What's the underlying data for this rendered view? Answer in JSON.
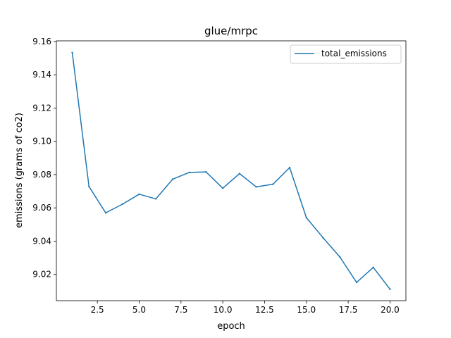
{
  "chart_data": {
    "type": "line",
    "title": "glue/mrpc",
    "xlabel": "epoch",
    "ylabel": "emissions (grams of co2)",
    "xlim": [
      0.05,
      20.95
    ],
    "ylim": [
      9.0042,
      9.1604
    ],
    "x_ticks": [
      2.5,
      5.0,
      7.5,
      10.0,
      12.5,
      15.0,
      17.5,
      20.0
    ],
    "x_tick_labels": [
      "2.5",
      "5.0",
      "7.5",
      "10.0",
      "12.5",
      "15.0",
      "17.5",
      "20.0"
    ],
    "y_ticks": [
      9.02,
      9.04,
      9.06,
      9.08,
      9.1,
      9.12,
      9.14,
      9.16
    ],
    "y_tick_labels": [
      "9.02",
      "9.04",
      "9.06",
      "9.08",
      "9.10",
      "9.12",
      "9.14",
      "9.16"
    ],
    "grid": false,
    "legend_position": "top-right",
    "series": [
      {
        "name": "total_emissions",
        "color": "#1f77b4",
        "x": [
          1,
          2,
          3,
          4,
          5,
          6,
          7,
          8,
          9,
          10,
          11,
          12,
          13,
          14,
          15,
          16,
          17,
          18,
          19,
          20
        ],
        "y": [
          9.1533,
          9.0728,
          9.057,
          9.0622,
          9.0682,
          9.0654,
          9.0772,
          9.0813,
          9.0816,
          9.0718,
          9.0806,
          9.0726,
          9.0742,
          9.0842,
          9.0541,
          9.042,
          9.0305,
          9.0152,
          9.0242,
          9.0111
        ]
      }
    ]
  }
}
